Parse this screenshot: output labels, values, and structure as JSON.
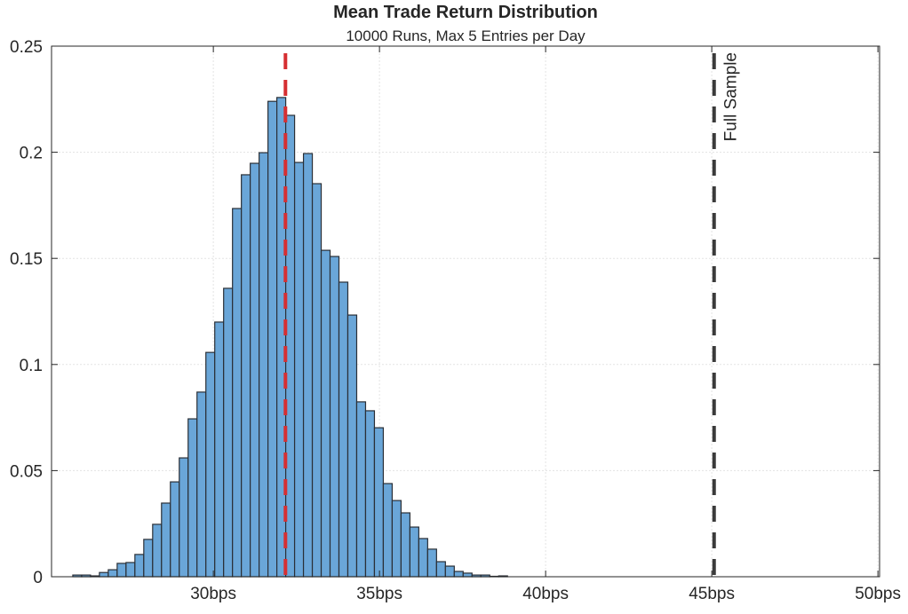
{
  "chart_data": {
    "type": "bar",
    "title": "Mean Trade Return Distribution",
    "subtitle": "10000 Runs, Max 5 Entries per Day",
    "xlabel": "",
    "ylabel": "",
    "xlim": [
      25.13,
      50.05
    ],
    "ylim": [
      0,
      0.25
    ],
    "grid": true,
    "x_ticks": [
      30,
      35,
      40,
      45,
      50
    ],
    "x_tick_labels": [
      "30bps",
      "35bps",
      "40bps",
      "45bps",
      "50bps"
    ],
    "y_ticks": [
      0,
      0.05,
      0.1,
      0.15,
      0.2,
      0.25
    ],
    "y_tick_labels": [
      "0",
      "0.05",
      "0.1",
      "0.15",
      "0.2",
      "0.25"
    ],
    "bin_start": 25.77,
    "bin_width": 0.267,
    "values": [
      0.0008,
      0.0008,
      0.0004,
      0.002,
      0.0033,
      0.0063,
      0.0067,
      0.0105,
      0.0176,
      0.0247,
      0.0347,
      0.0447,
      0.056,
      0.0744,
      0.087,
      0.1057,
      0.12,
      0.1359,
      0.1735,
      0.1894,
      0.1948,
      0.1998,
      0.224,
      0.2258,
      0.2174,
      0.1952,
      0.1994,
      0.1852,
      0.1538,
      0.1509,
      0.1388,
      0.1233,
      0.0824,
      0.0782,
      0.0702,
      0.0439,
      0.0359,
      0.0301,
      0.0234,
      0.018,
      0.013,
      0.0071,
      0.005,
      0.0025,
      0.0017,
      0.0008,
      0.0008,
      0.0002,
      0.0004
    ],
    "bar_color": "#6aa6d8",
    "bar_edge_color": "#2a2f36",
    "reference_lines": [
      {
        "name": "mean",
        "x": 32.17,
        "color": "#d62f32",
        "style": "dashed",
        "label": ""
      },
      {
        "name": "full-sample",
        "x": 45.07,
        "color": "#3a3a3a",
        "style": "dashed",
        "label": "Full Sample"
      }
    ]
  }
}
